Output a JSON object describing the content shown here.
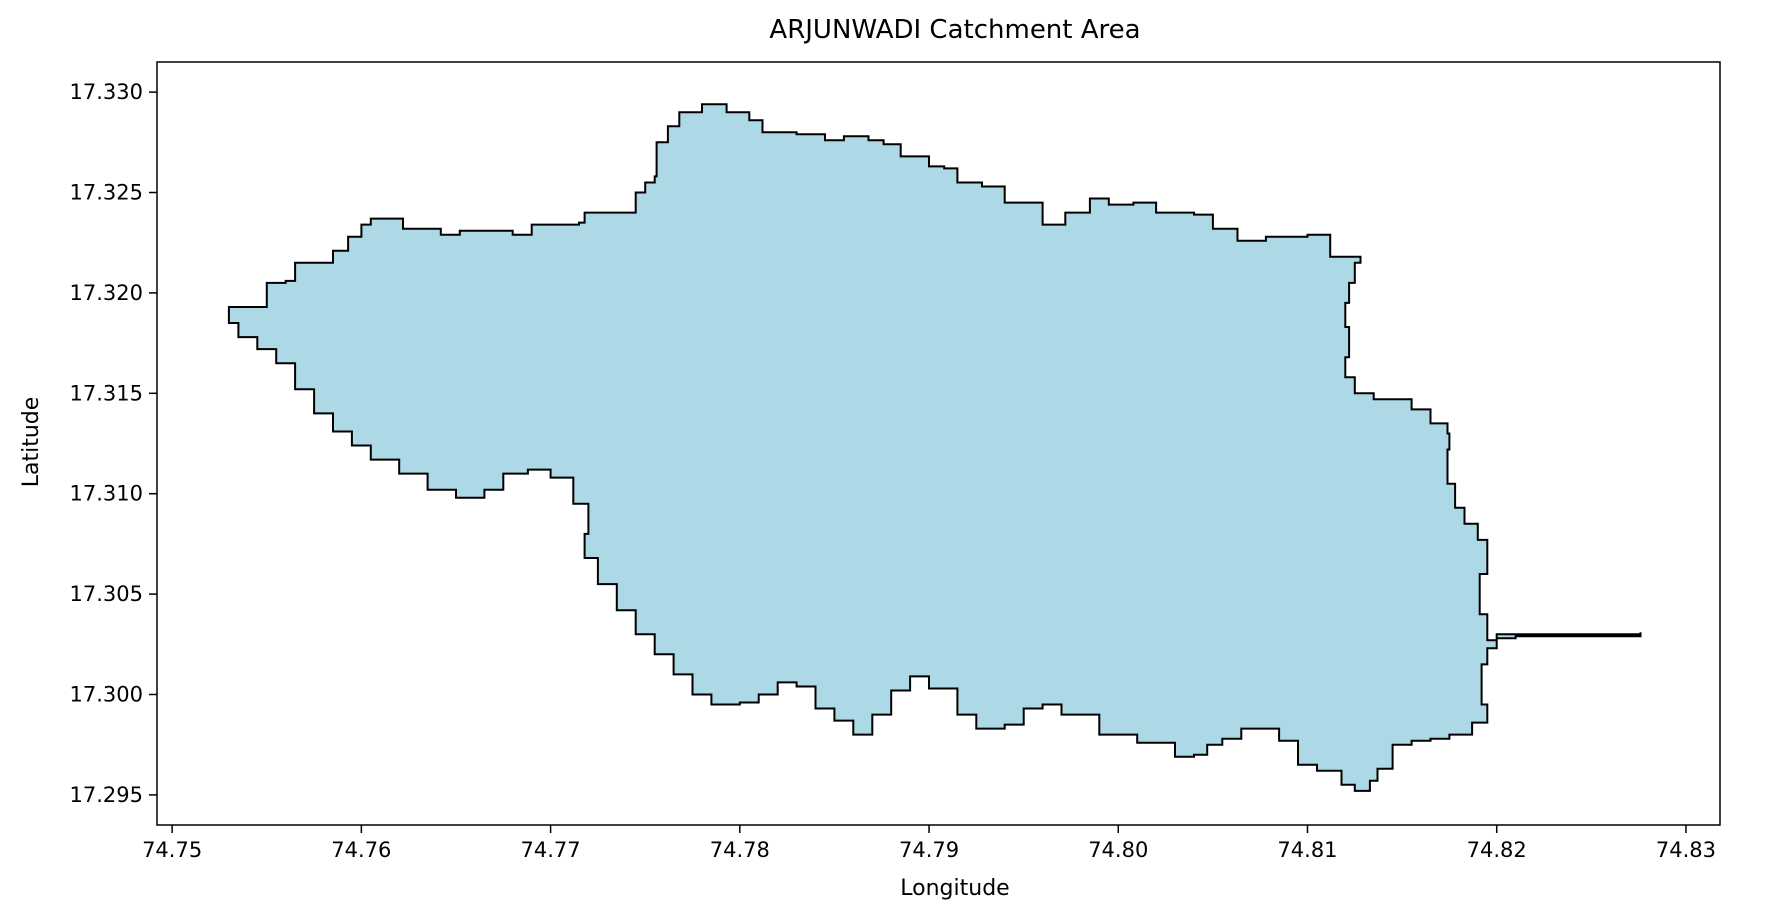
{
  "title": "ARJUNWADI Catchment Area",
  "xlabel": "Longitude",
  "ylabel": "Latitude",
  "xticks": [
    "74.75",
    "74.76",
    "74.77",
    "74.78",
    "74.79",
    "74.80",
    "74.81",
    "74.82",
    "74.83"
  ],
  "yticks": [
    "17.295",
    "17.300",
    "17.305",
    "17.310",
    "17.315",
    "17.320",
    "17.325",
    "17.330"
  ],
  "colors": {
    "fill": "#add8e6",
    "edge": "#000000",
    "axes": "#000000",
    "background": "#ffffff"
  },
  "chart_data": {
    "type": "map-polygon",
    "title": "ARJUNWADI Catchment Area",
    "xlabel": "Longitude",
    "ylabel": "Latitude",
    "xlim": [
      74.7492,
      74.8318
    ],
    "ylim": [
      17.2935,
      17.3315
    ],
    "xticks": [
      74.75,
      74.76,
      74.77,
      74.78,
      74.79,
      74.8,
      74.81,
      74.82,
      74.83
    ],
    "yticks": [
      17.295,
      17.3,
      17.305,
      17.31,
      17.315,
      17.32,
      17.325,
      17.33
    ],
    "polygon": [
      [
        74.753,
        17.3193
      ],
      [
        74.7548,
        17.3193
      ],
      [
        74.755,
        17.3205
      ],
      [
        74.756,
        17.3206
      ],
      [
        74.7565,
        17.3215
      ],
      [
        74.7583,
        17.3215
      ],
      [
        74.7585,
        17.3221
      ],
      [
        74.7593,
        17.3228
      ],
      [
        74.76,
        17.3234
      ],
      [
        74.7605,
        17.3237
      ],
      [
        74.7615,
        17.3237
      ],
      [
        74.7622,
        17.3232
      ],
      [
        74.7632,
        17.3232
      ],
      [
        74.7642,
        17.3229
      ],
      [
        74.7652,
        17.3231
      ],
      [
        74.7665,
        17.3231
      ],
      [
        74.768,
        17.3229
      ],
      [
        74.769,
        17.3234
      ],
      [
        74.7715,
        17.3235
      ],
      [
        74.7718,
        17.324
      ],
      [
        74.7742,
        17.324
      ],
      [
        74.7745,
        17.325
      ],
      [
        74.775,
        17.3255
      ],
      [
        74.7755,
        17.3258
      ],
      [
        74.7756,
        17.3275
      ],
      [
        74.7762,
        17.3283
      ],
      [
        74.7768,
        17.329
      ],
      [
        74.778,
        17.3294
      ],
      [
        74.7793,
        17.329
      ],
      [
        74.7805,
        17.3286
      ],
      [
        74.7812,
        17.328
      ],
      [
        74.783,
        17.3279
      ],
      [
        74.7845,
        17.3276
      ],
      [
        74.7855,
        17.3278
      ],
      [
        74.7868,
        17.3276
      ],
      [
        74.7876,
        17.3274
      ],
      [
        74.7885,
        17.3268
      ],
      [
        74.79,
        17.3263
      ],
      [
        74.7908,
        17.3262
      ],
      [
        74.7915,
        17.3255
      ],
      [
        74.7928,
        17.3253
      ],
      [
        74.794,
        17.3245
      ],
      [
        74.796,
        17.3234
      ],
      [
        74.7972,
        17.324
      ],
      [
        74.7985,
        17.3247
      ],
      [
        74.7995,
        17.3244
      ],
      [
        74.8008,
        17.3245
      ],
      [
        74.802,
        17.324
      ],
      [
        74.804,
        17.3239
      ],
      [
        74.805,
        17.3232
      ],
      [
        74.8063,
        17.3226
      ],
      [
        74.8078,
        17.3228
      ],
      [
        74.81,
        17.3229
      ],
      [
        74.8112,
        17.3218
      ],
      [
        74.8128,
        17.3215
      ],
      [
        74.8125,
        17.3205
      ],
      [
        74.8122,
        17.3195
      ],
      [
        74.812,
        17.3183
      ],
      [
        74.8122,
        17.3168
      ],
      [
        74.812,
        17.3158
      ],
      [
        74.8125,
        17.315
      ],
      [
        74.8135,
        17.3147
      ],
      [
        74.8145,
        17.3147
      ],
      [
        74.8155,
        17.3142
      ],
      [
        74.8165,
        17.3135
      ],
      [
        74.8174,
        17.313
      ],
      [
        74.8175,
        17.3122
      ],
      [
        74.8174,
        17.3105
      ],
      [
        74.8178,
        17.3093
      ],
      [
        74.8183,
        17.3085
      ],
      [
        74.819,
        17.3077
      ],
      [
        74.8195,
        17.306
      ],
      [
        74.8191,
        17.304
      ],
      [
        74.8195,
        17.3027
      ],
      [
        74.82,
        17.303
      ],
      [
        74.8276,
        17.3031
      ],
      [
        74.8276,
        17.3029
      ],
      [
        74.821,
        17.3028
      ],
      [
        74.82,
        17.3023
      ],
      [
        74.8195,
        17.3015
      ],
      [
        74.8192,
        17.3005
      ],
      [
        74.8192,
        17.2995
      ],
      [
        74.8195,
        17.2986
      ],
      [
        74.8187,
        17.298
      ],
      [
        74.8175,
        17.2978
      ],
      [
        74.8165,
        17.2977
      ],
      [
        74.8155,
        17.2975
      ],
      [
        74.8145,
        17.2963
      ],
      [
        74.8137,
        17.2957
      ],
      [
        74.8133,
        17.2952
      ],
      [
        74.8125,
        17.2955
      ],
      [
        74.8118,
        17.2962
      ],
      [
        74.8105,
        17.2965
      ],
      [
        74.8095,
        17.2977
      ],
      [
        74.8085,
        17.2983
      ],
      [
        74.8075,
        17.2983
      ],
      [
        74.8065,
        17.2978
      ],
      [
        74.8055,
        17.2975
      ],
      [
        74.8047,
        17.297
      ],
      [
        74.804,
        17.2969
      ],
      [
        74.803,
        17.2976
      ],
      [
        74.801,
        17.298
      ],
      [
        74.799,
        17.299
      ],
      [
        74.797,
        17.2995
      ],
      [
        74.796,
        17.2993
      ],
      [
        74.795,
        17.2985
      ],
      [
        74.794,
        17.2983
      ],
      [
        74.7925,
        17.299
      ],
      [
        74.7915,
        17.3003
      ],
      [
        74.79,
        17.3009
      ],
      [
        74.789,
        17.3002
      ],
      [
        74.788,
        17.299
      ],
      [
        74.787,
        17.298
      ],
      [
        74.786,
        17.2987
      ],
      [
        74.785,
        17.2993
      ],
      [
        74.784,
        17.3004
      ],
      [
        74.783,
        17.3006
      ],
      [
        74.782,
        17.3
      ],
      [
        74.781,
        17.2996
      ],
      [
        74.78,
        17.2995
      ],
      [
        74.7785,
        17.3
      ],
      [
        74.7775,
        17.301
      ],
      [
        74.7765,
        17.302
      ],
      [
        74.7755,
        17.303
      ],
      [
        74.7745,
        17.3042
      ],
      [
        74.7735,
        17.3055
      ],
      [
        74.7725,
        17.3068
      ],
      [
        74.7718,
        17.308
      ],
      [
        74.772,
        17.3095
      ],
      [
        74.7712,
        17.3108
      ],
      [
        74.77,
        17.3112
      ],
      [
        74.7688,
        17.311
      ],
      [
        74.7675,
        17.3102
      ],
      [
        74.7665,
        17.3098
      ],
      [
        74.765,
        17.3102
      ],
      [
        74.7635,
        17.311
      ],
      [
        74.762,
        17.3117
      ],
      [
        74.7605,
        17.3124
      ],
      [
        74.7595,
        17.3131
      ],
      [
        74.7585,
        17.314
      ],
      [
        74.7575,
        17.3152
      ],
      [
        74.7565,
        17.3165
      ],
      [
        74.7555,
        17.3172
      ],
      [
        74.7545,
        17.3178
      ],
      [
        74.7535,
        17.3185
      ],
      [
        74.753,
        17.319
      ]
    ]
  }
}
